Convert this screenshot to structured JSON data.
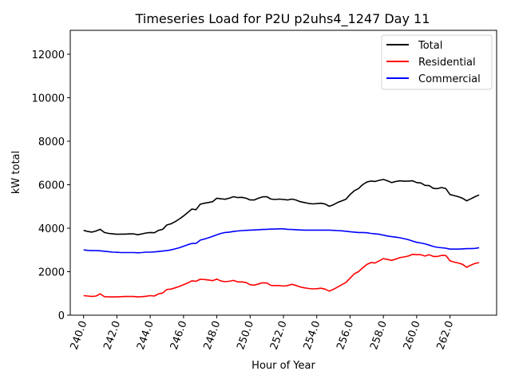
{
  "chart_data": {
    "type": "line",
    "title": "Timeseries Load for P2U p2uhs4_1247  Day 11",
    "xlabel": "Hour of Year",
    "ylabel": "kW total",
    "xlim": [
      239.2,
      264.8
    ],
    "ylim": [
      0,
      13100
    ],
    "xticks": [
      240,
      242,
      244,
      246,
      248,
      250,
      252,
      254,
      256,
      258,
      260,
      262
    ],
    "xtick_labels": [
      "240.0",
      "242.0",
      "244.0",
      "246.0",
      "248.0",
      "250.0",
      "252.0",
      "254.0",
      "256.0",
      "258.0",
      "260.0",
      "262.0"
    ],
    "yticks": [
      0,
      2000,
      4000,
      6000,
      8000,
      10000,
      12000
    ],
    "ytick_labels": [
      "0",
      "2000",
      "4000",
      "6000",
      "8000",
      "10000",
      "12000"
    ],
    "grid": false,
    "legend_position": "top-right",
    "x": [
      240.0,
      240.25,
      240.5,
      240.75,
      241.0,
      241.25,
      241.5,
      241.75,
      242.0,
      242.25,
      242.5,
      242.75,
      243.0,
      243.25,
      243.5,
      243.75,
      244.0,
      244.25,
      244.5,
      244.75,
      245.0,
      245.25,
      245.5,
      245.75,
      246.0,
      246.25,
      246.5,
      246.75,
      247.0,
      247.25,
      247.5,
      247.75,
      248.0,
      248.25,
      248.5,
      248.75,
      249.0,
      249.25,
      249.5,
      249.75,
      250.0,
      250.25,
      250.5,
      250.75,
      251.0,
      251.25,
      251.5,
      251.75,
      252.0,
      252.25,
      252.5,
      252.75,
      253.0,
      253.25,
      253.5,
      253.75,
      254.0,
      254.25,
      254.5,
      254.75,
      255.0,
      255.25,
      255.5,
      255.75,
      256.0,
      256.25,
      256.5,
      256.75,
      257.0,
      257.25,
      257.5,
      257.75,
      258.0,
      258.25,
      258.5,
      258.75,
      259.0,
      259.25,
      259.5,
      259.75,
      260.0,
      260.25,
      260.5,
      260.75,
      261.0,
      261.25,
      261.5,
      261.75,
      262.0,
      262.25,
      262.5,
      262.75,
      263.0,
      263.25,
      263.5,
      263.75
    ],
    "series": [
      {
        "name": "Total",
        "color": "#000000",
        "values": [
          3900,
          3850,
          3820,
          3870,
          3950,
          3800,
          3760,
          3740,
          3720,
          3730,
          3730,
          3740,
          3740,
          3700,
          3740,
          3780,
          3800,
          3790,
          3900,
          3950,
          4150,
          4200,
          4300,
          4420,
          4560,
          4720,
          4880,
          4850,
          5100,
          5150,
          5180,
          5220,
          5380,
          5350,
          5330,
          5380,
          5450,
          5410,
          5420,
          5380,
          5300,
          5300,
          5380,
          5440,
          5450,
          5340,
          5320,
          5340,
          5320,
          5300,
          5340,
          5300,
          5220,
          5180,
          5140,
          5120,
          5130,
          5150,
          5110,
          5010,
          5080,
          5180,
          5260,
          5330,
          5550,
          5720,
          5820,
          6000,
          6120,
          6170,
          6150,
          6200,
          6240,
          6180,
          6100,
          6150,
          6180,
          6160,
          6170,
          6180,
          6100,
          6080,
          5970,
          5960,
          5830,
          5820,
          5870,
          5820,
          5550,
          5500,
          5450,
          5380,
          5260,
          5350,
          5450,
          5530
        ]
      },
      {
        "name": "Residential",
        "color": "#ff0000",
        "values": [
          900,
          880,
          860,
          880,
          980,
          850,
          840,
          840,
          840,
          850,
          860,
          860,
          860,
          840,
          850,
          870,
          900,
          880,
          980,
          1020,
          1180,
          1200,
          1260,
          1320,
          1400,
          1480,
          1580,
          1560,
          1650,
          1640,
          1620,
          1590,
          1660,
          1570,
          1540,
          1560,
          1600,
          1530,
          1530,
          1500,
          1400,
          1380,
          1440,
          1490,
          1480,
          1370,
          1360,
          1360,
          1340,
          1360,
          1420,
          1370,
          1300,
          1260,
          1230,
          1210,
          1220,
          1240,
          1200,
          1110,
          1190,
          1290,
          1400,
          1500,
          1700,
          1900,
          2000,
          2170,
          2330,
          2420,
          2400,
          2500,
          2600,
          2560,
          2520,
          2580,
          2650,
          2680,
          2720,
          2800,
          2780,
          2780,
          2720,
          2780,
          2700,
          2700,
          2750,
          2740,
          2500,
          2440,
          2400,
          2340,
          2200,
          2300,
          2380,
          2420
        ]
      },
      {
        "name": "Commercial",
        "color": "#0000ff",
        "values": [
          3000,
          2980,
          2970,
          2970,
          2960,
          2940,
          2920,
          2900,
          2890,
          2880,
          2880,
          2880,
          2880,
          2870,
          2880,
          2900,
          2900,
          2910,
          2930,
          2950,
          2970,
          3000,
          3050,
          3100,
          3170,
          3240,
          3300,
          3300,
          3450,
          3500,
          3560,
          3620,
          3700,
          3760,
          3800,
          3820,
          3850,
          3870,
          3890,
          3900,
          3910,
          3920,
          3930,
          3940,
          3950,
          3960,
          3960,
          3970,
          3970,
          3950,
          3940,
          3930,
          3920,
          3910,
          3910,
          3910,
          3910,
          3910,
          3910,
          3910,
          3900,
          3890,
          3880,
          3860,
          3840,
          3820,
          3800,
          3800,
          3790,
          3760,
          3740,
          3720,
          3680,
          3640,
          3610,
          3590,
          3560,
          3520,
          3470,
          3410,
          3350,
          3320,
          3280,
          3220,
          3160,
          3120,
          3100,
          3080,
          3040,
          3040,
          3040,
          3050,
          3060,
          3060,
          3070,
          3100
        ]
      }
    ]
  }
}
